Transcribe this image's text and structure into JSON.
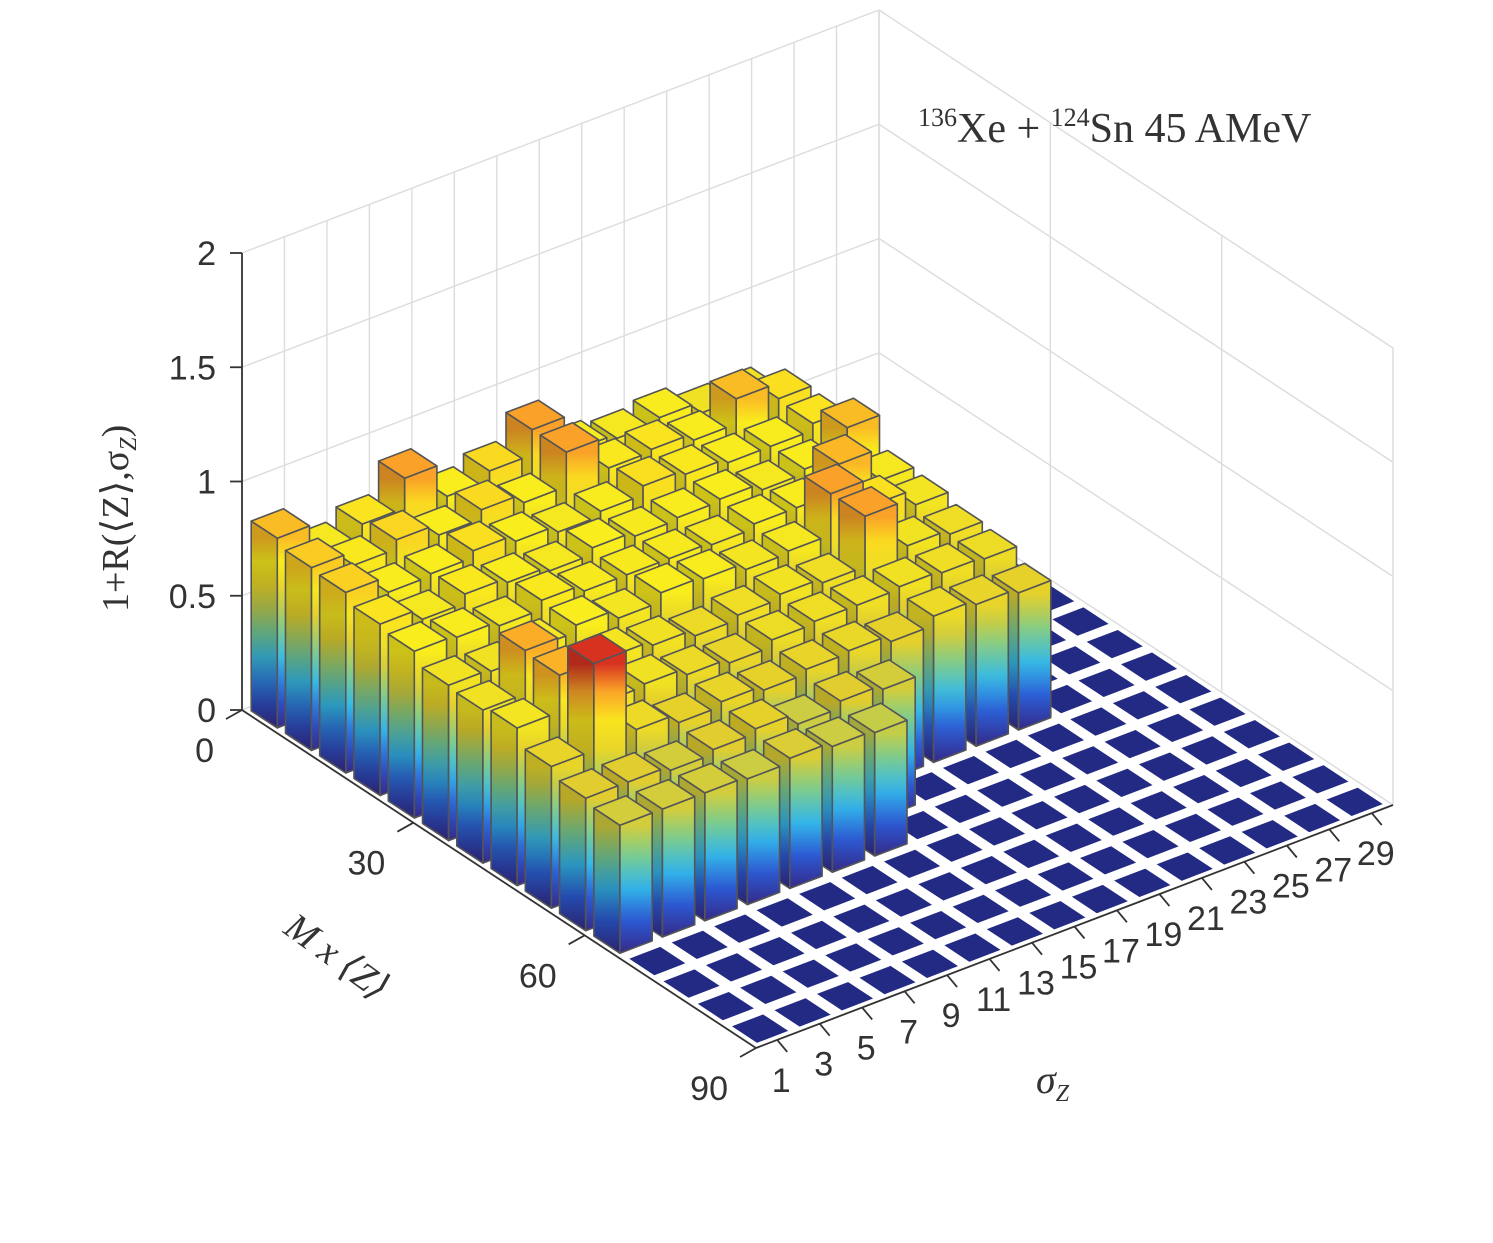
{
  "chart_data": {
    "type": "bar3d",
    "title": "¹³⁶Xe + ¹²⁴Sn 45 AMeV",
    "title_parts": {
      "a1": "136",
      "b1": "Xe + ",
      "a2": "124",
      "b2": "Sn 45 AMeV"
    },
    "zlabel": "1+R(⟨Z⟩,σZ)",
    "zlabel_parts": {
      "main": "1+R(⟨Z⟩,σ",
      "sub": "Z",
      "close": ")"
    },
    "xlabel": "M x ⟨Z⟩",
    "ylabel_parts": {
      "main": "σ",
      "sub": "Z"
    },
    "zlim": [
      0,
      2
    ],
    "z_ticks": [
      "0",
      "0.5",
      "1",
      "1.5",
      "2"
    ],
    "mz_ticks": [
      "0",
      "30",
      "60",
      "90"
    ],
    "sigma_ticks": [
      "1",
      "3",
      "5",
      "7",
      "9",
      "11",
      "13",
      "15",
      "17",
      "19",
      "21",
      "23",
      "25",
      "27",
      "29"
    ],
    "mz_bin_count": 15,
    "sigma_bin_count": 15,
    "colormap": [
      "#352a87",
      "#2c5ad4",
      "#33b8ea",
      "#7fcd8a",
      "#e3cd2d",
      "#f9ee1d",
      "#fba628",
      "#d11f1f"
    ],
    "floor_color": "#232a83",
    "bars": [
      {
        "mz": 1,
        "sigma": 1,
        "value": 0.83
      },
      {
        "mz": 1,
        "sigma": 2,
        "value": 0.7
      },
      {
        "mz": 1,
        "sigma": 3,
        "value": 0.75
      },
      {
        "mz": 1,
        "sigma": 4,
        "value": 0.88
      },
      {
        "mz": 1,
        "sigma": 5,
        "value": 0.73
      },
      {
        "mz": 1,
        "sigma": 6,
        "value": 0.77
      },
      {
        "mz": 1,
        "sigma": 7,
        "value": 0.88
      },
      {
        "mz": 1,
        "sigma": 8,
        "value": 0.72
      },
      {
        "mz": 1,
        "sigma": 9,
        "value": 0.7
      },
      {
        "mz": 1,
        "sigma": 10,
        "value": 0.72
      },
      {
        "mz": 1,
        "sigma": 11,
        "value": 0.67
      },
      {
        "mz": 1,
        "sigma": 12,
        "value": 0.67
      },
      {
        "mz": 2,
        "sigma": 1,
        "value": 0.8
      },
      {
        "mz": 2,
        "sigma": 2,
        "value": 0.74
      },
      {
        "mz": 2,
        "sigma": 3,
        "value": 0.78
      },
      {
        "mz": 2,
        "sigma": 4,
        "value": 0.73
      },
      {
        "mz": 2,
        "sigma": 5,
        "value": 0.77
      },
      {
        "mz": 2,
        "sigma": 6,
        "value": 0.73
      },
      {
        "mz": 2,
        "sigma": 7,
        "value": 0.88
      },
      {
        "mz": 2,
        "sigma": 8,
        "value": 0.74
      },
      {
        "mz": 2,
        "sigma": 9,
        "value": 0.75
      },
      {
        "mz": 2,
        "sigma": 10,
        "value": 0.72
      },
      {
        "mz": 2,
        "sigma": 11,
        "value": 0.83
      },
      {
        "mz": 2,
        "sigma": 12,
        "value": 0.76
      },
      {
        "mz": 3,
        "sigma": 1,
        "value": 0.79
      },
      {
        "mz": 3,
        "sigma": 2,
        "value": 0.72
      },
      {
        "mz": 3,
        "sigma": 3,
        "value": 0.73
      },
      {
        "mz": 3,
        "sigma": 4,
        "value": 0.76
      },
      {
        "mz": 3,
        "sigma": 5,
        "value": 0.73
      },
      {
        "mz": 3,
        "sigma": 6,
        "value": 0.7
      },
      {
        "mz": 3,
        "sigma": 7,
        "value": 0.72
      },
      {
        "mz": 3,
        "sigma": 8,
        "value": 0.76
      },
      {
        "mz": 3,
        "sigma": 9,
        "value": 0.74
      },
      {
        "mz": 3,
        "sigma": 10,
        "value": 0.72
      },
      {
        "mz": 3,
        "sigma": 11,
        "value": 0.72
      },
      {
        "mz": 3,
        "sigma": 12,
        "value": 0.75
      },
      {
        "mz": 4,
        "sigma": 1,
        "value": 0.75
      },
      {
        "mz": 4,
        "sigma": 2,
        "value": 0.7
      },
      {
        "mz": 4,
        "sigma": 3,
        "value": 0.74
      },
      {
        "mz": 4,
        "sigma": 4,
        "value": 0.72
      },
      {
        "mz": 4,
        "sigma": 5,
        "value": 0.7
      },
      {
        "mz": 4,
        "sigma": 6,
        "value": 0.73
      },
      {
        "mz": 4,
        "sigma": 7,
        "value": 0.71
      },
      {
        "mz": 4,
        "sigma": 8,
        "value": 0.72
      },
      {
        "mz": 4,
        "sigma": 9,
        "value": 0.73
      },
      {
        "mz": 4,
        "sigma": 10,
        "value": 0.7
      },
      {
        "mz": 4,
        "sigma": 11,
        "value": 0.72
      },
      {
        "mz": 4,
        "sigma": 12,
        "value": 0.83
      },
      {
        "mz": 5,
        "sigma": 1,
        "value": 0.73
      },
      {
        "mz": 5,
        "sigma": 2,
        "value": 0.72
      },
      {
        "mz": 5,
        "sigma": 3,
        "value": 0.7
      },
      {
        "mz": 5,
        "sigma": 4,
        "value": 0.74
      },
      {
        "mz": 5,
        "sigma": 5,
        "value": 0.71
      },
      {
        "mz": 5,
        "sigma": 6,
        "value": 0.71
      },
      {
        "mz": 5,
        "sigma": 7,
        "value": 0.71
      },
      {
        "mz": 5,
        "sigma": 8,
        "value": 0.7
      },
      {
        "mz": 5,
        "sigma": 9,
        "value": 0.72
      },
      {
        "mz": 5,
        "sigma": 10,
        "value": 0.72
      },
      {
        "mz": 5,
        "sigma": 11,
        "value": 0.84
      },
      {
        "mz": 5,
        "sigma": 12,
        "value": 0.7
      },
      {
        "mz": 6,
        "sigma": 1,
        "value": 0.68
      },
      {
        "mz": 6,
        "sigma": 2,
        "value": 0.67
      },
      {
        "mz": 6,
        "sigma": 3,
        "value": 0.7
      },
      {
        "mz": 6,
        "sigma": 4,
        "value": 0.73
      },
      {
        "mz": 6,
        "sigma": 5,
        "value": 0.69
      },
      {
        "mz": 6,
        "sigma": 6,
        "value": 0.73
      },
      {
        "mz": 6,
        "sigma": 7,
        "value": 0.72
      },
      {
        "mz": 6,
        "sigma": 8,
        "value": 0.69
      },
      {
        "mz": 6,
        "sigma": 9,
        "value": 0.7
      },
      {
        "mz": 6,
        "sigma": 10,
        "value": 0.88
      },
      {
        "mz": 6,
        "sigma": 11,
        "value": 0.76
      },
      {
        "mz": 6,
        "sigma": 12,
        "value": 0.69
      },
      {
        "mz": 7,
        "sigma": 1,
        "value": 0.67
      },
      {
        "mz": 7,
        "sigma": 2,
        "value": 0.86
      },
      {
        "mz": 7,
        "sigma": 3,
        "value": 0.66
      },
      {
        "mz": 7,
        "sigma": 4,
        "value": 0.69
      },
      {
        "mz": 7,
        "sigma": 5,
        "value": 0.67
      },
      {
        "mz": 7,
        "sigma": 6,
        "value": 0.64
      },
      {
        "mz": 7,
        "sigma": 7,
        "value": 0.66
      },
      {
        "mz": 7,
        "sigma": 8,
        "value": 0.68
      },
      {
        "mz": 7,
        "sigma": 9,
        "value": 0.66
      },
      {
        "mz": 7,
        "sigma": 10,
        "value": 0.88
      },
      {
        "mz": 7,
        "sigma": 11,
        "value": 0.68
      },
      {
        "mz": 7,
        "sigma": 12,
        "value": 0.66
      },
      {
        "mz": 8,
        "sigma": 1,
        "value": 0.69
      },
      {
        "mz": 8,
        "sigma": 2,
        "value": 0.85
      },
      {
        "mz": 8,
        "sigma": 3,
        "value": 0.66
      },
      {
        "mz": 8,
        "sigma": 4,
        "value": 0.67
      },
      {
        "mz": 8,
        "sigma": 5,
        "value": 0.64
      },
      {
        "mz": 8,
        "sigma": 6,
        "value": 0.62
      },
      {
        "mz": 8,
        "sigma": 7,
        "value": 0.65
      },
      {
        "mz": 8,
        "sigma": 8,
        "value": 0.66
      },
      {
        "mz": 8,
        "sigma": 9,
        "value": 0.66
      },
      {
        "mz": 8,
        "sigma": 10,
        "value": 0.67
      },
      {
        "mz": 8,
        "sigma": 11,
        "value": 0.66
      },
      {
        "mz": 8,
        "sigma": 12,
        "value": 0.65
      },
      {
        "mz": 9,
        "sigma": 1,
        "value": 0.62
      },
      {
        "mz": 9,
        "sigma": 2,
        "value": 1.0
      },
      {
        "mz": 9,
        "sigma": 3,
        "value": 0.64
      },
      {
        "mz": 9,
        "sigma": 4,
        "value": 0.6
      },
      {
        "mz": 9,
        "sigma": 5,
        "value": 0.62
      },
      {
        "mz": 9,
        "sigma": 6,
        "value": 0.6
      },
      {
        "mz": 9,
        "sigma": 7,
        "value": 0.62
      },
      {
        "mz": 9,
        "sigma": 8,
        "value": 0.63
      },
      {
        "mz": 9,
        "sigma": 9,
        "value": 0.6
      },
      {
        "mz": 9,
        "sigma": 10,
        "value": 0.64
      },
      {
        "mz": 9,
        "sigma": 11,
        "value": 0.62
      },
      {
        "mz": 9,
        "sigma": 12,
        "value": 0.6
      },
      {
        "mz": 10,
        "sigma": 1,
        "value": 0.58
      },
      {
        "mz": 10,
        "sigma": 2,
        "value": 0.58
      },
      {
        "mz": 10,
        "sigma": 3,
        "value": 0.56
      },
      {
        "mz": 10,
        "sigma": 4,
        "value": 0.58
      },
      {
        "mz": 10,
        "sigma": 5,
        "value": 0.6
      },
      {
        "mz": 10,
        "sigma": 6,
        "value": 0.55
      },
      {
        "mz": 10,
        "sigma": 7,
        "value": 0.58
      },
      {
        "mz": 10,
        "sigma": 8,
        "value": 0.56
      },
      {
        "mz": 11,
        "sigma": 1,
        "value": 0.56
      },
      {
        "mz": 11,
        "sigma": 2,
        "value": 0.56
      },
      {
        "mz": 11,
        "sigma": 3,
        "value": 0.56
      },
      {
        "mz": 11,
        "sigma": 4,
        "value": 0.55
      },
      {
        "mz": 11,
        "sigma": 5,
        "value": 0.57
      },
      {
        "mz": 11,
        "sigma": 6,
        "value": 0.55
      },
      {
        "mz": 11,
        "sigma": 7,
        "value": 0.54
      }
    ]
  }
}
